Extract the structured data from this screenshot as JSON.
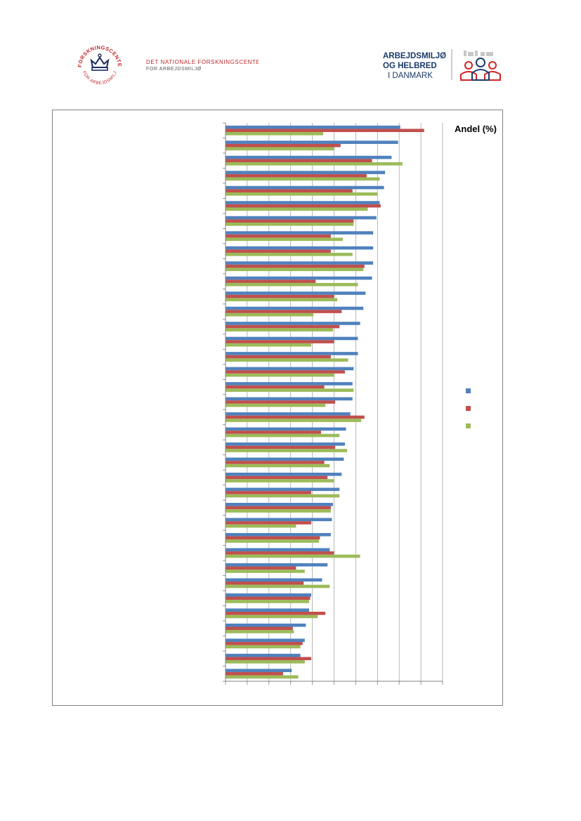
{
  "header": {
    "left_logo": {
      "arc_text": "FORSKNINGSCENTER",
      "arc_text_bottom": "FOR ARBEJDSMILJØ",
      "line1": "DET NATIONALE FORSKNINGSCENTER",
      "line2": "FOR ARBEJDSMILJØ",
      "accent": "#c0282d",
      "navy": "#1a2a5e"
    },
    "right_logo": {
      "line1": "ARBEJDSMILJØ",
      "line2": "OG HELBRED",
      "line3": "I DANMARK",
      "navy": "#1a3a6b",
      "red": "#d2232a"
    }
  },
  "chart_data": {
    "type": "bar",
    "orientation": "horizontal",
    "title": "Andel (%)",
    "xlim": [
      0,
      100
    ],
    "grid": true,
    "legend_placement": "right",
    "series": [
      {
        "color": "#4f81bd",
        "values": [
          80.5,
          79.5,
          76.5,
          73.5,
          73,
          71,
          69.5,
          68,
          68,
          68,
          67.5,
          64.5,
          63.5,
          62,
          61,
          61,
          59,
          58.5,
          58.5,
          57.5,
          55.5,
          55,
          54.5,
          53.5,
          52.5,
          49.5,
          49,
          48.5,
          48,
          47,
          44.5,
          39.5,
          38.5,
          37,
          36.5,
          34.5,
          30.5
        ]
      },
      {
        "color": "#c0504d",
        "values": [
          91.5,
          53,
          67.5,
          65,
          58.5,
          71.5,
          59,
          48.5,
          48.5,
          64,
          41.5,
          50,
          53.5,
          52.5,
          50,
          48.5,
          55,
          45.5,
          50.5,
          64,
          44,
          50.5,
          45.5,
          47,
          39.5,
          48.5,
          39.5,
          43.5,
          50,
          32.5,
          36,
          39,
          46,
          31,
          35.5,
          39.5,
          26.5
        ]
      },
      {
        "color": "#9bbb59",
        "values": [
          45,
          50,
          81.5,
          71,
          70,
          65.5,
          59,
          54,
          58.5,
          63.5,
          61,
          51.5,
          40.5,
          49.5,
          39.5,
          56.5,
          50,
          59,
          46,
          62.5,
          52.5,
          56,
          48,
          50,
          52.5,
          48.5,
          32.5,
          43,
          62,
          36.5,
          48,
          38.5,
          42.5,
          31.5,
          34.5,
          36.5,
          33.5
        ]
      }
    ]
  }
}
